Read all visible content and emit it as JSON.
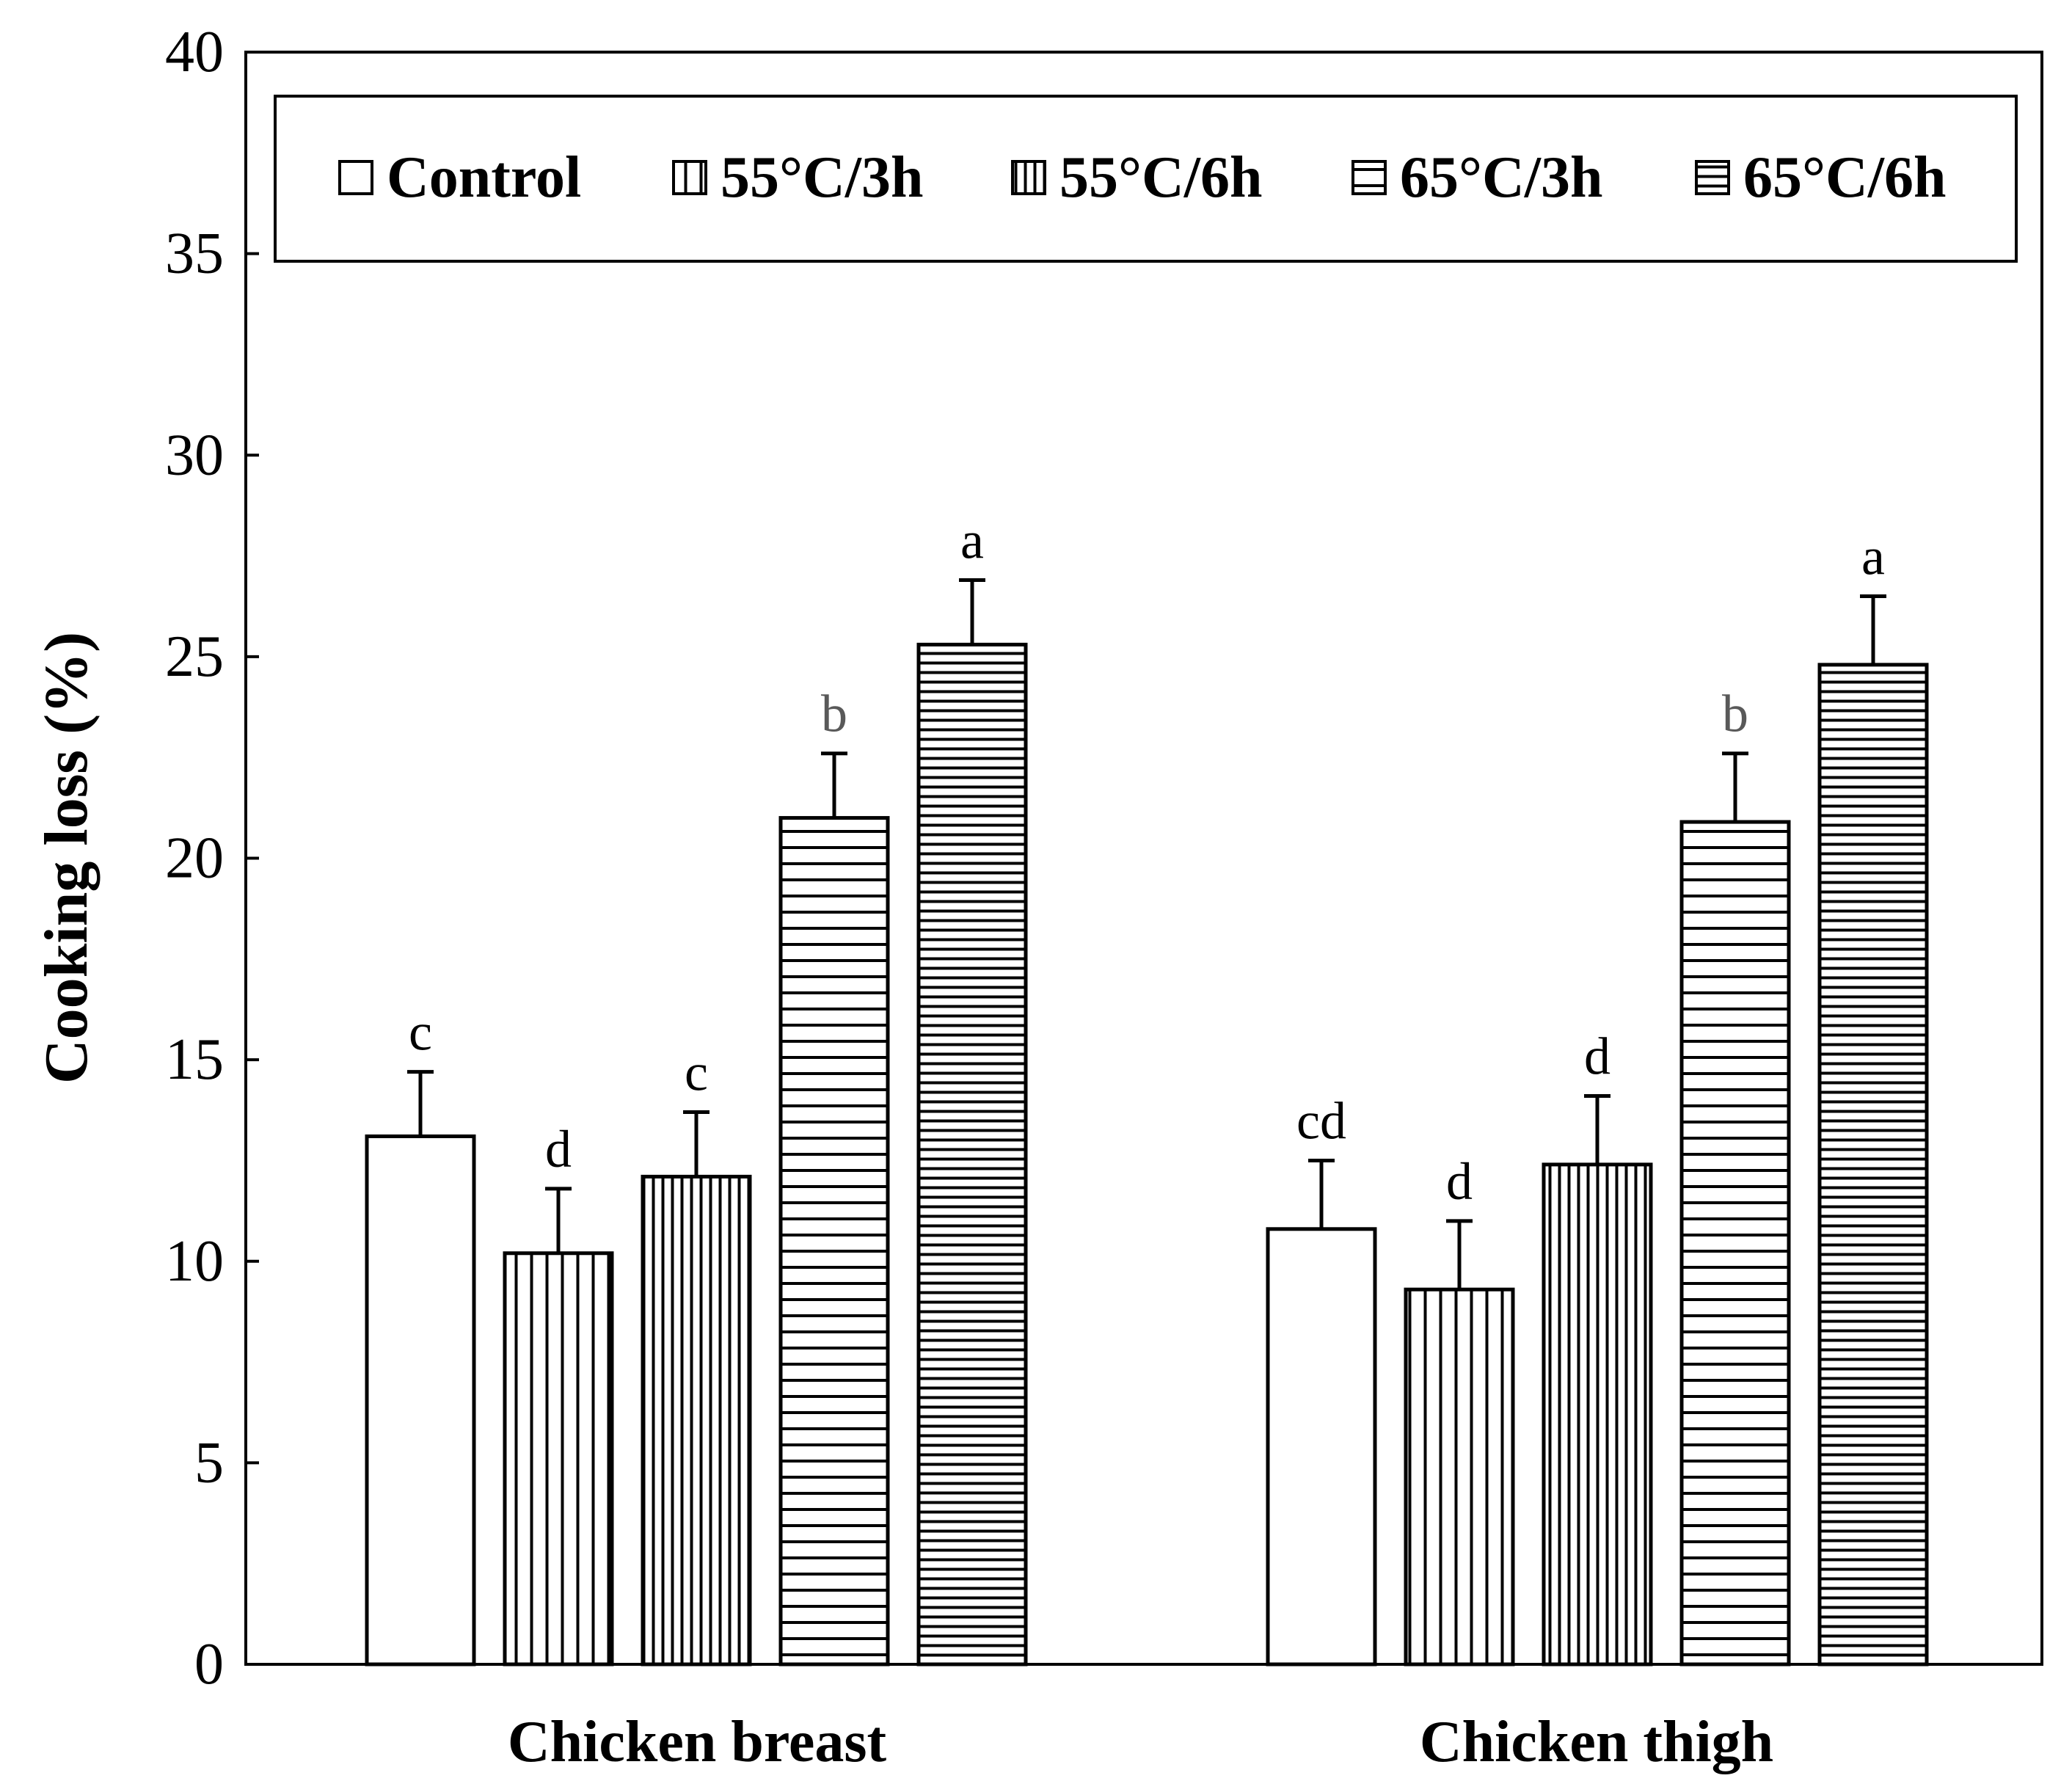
{
  "chart_data": {
    "type": "bar",
    "title": "",
    "xlabel": "",
    "ylabel": "Cooking loss (%)",
    "ylim": [
      0,
      40
    ],
    "yticks": [
      0,
      5,
      10,
      15,
      20,
      25,
      30,
      35,
      40
    ],
    "grid": false,
    "legend_position": "top",
    "categories": [
      "Chicken breast",
      "Chicken thigh"
    ],
    "series": [
      {
        "name": "Control",
        "pattern": "none",
        "values": [
          13.1,
          10.8
        ],
        "errors": [
          1.6,
          1.7
        ],
        "letters": [
          "c",
          "cd"
        ]
      },
      {
        "name": "55°C/3h",
        "pattern": "vertical",
        "values": [
          10.2,
          9.3
        ],
        "errors": [
          1.6,
          1.7
        ],
        "letters": [
          "d",
          "d"
        ]
      },
      {
        "name": "55°C/6h",
        "pattern": "vertical",
        "values": [
          12.1,
          12.4
        ],
        "errors": [
          1.6,
          1.7
        ],
        "letters": [
          "c",
          "d"
        ]
      },
      {
        "name": "65°C/3h",
        "pattern": "horizontal",
        "values": [
          21.0,
          20.9
        ],
        "errors": [
          1.6,
          1.7
        ],
        "letters": [
          "b",
          "b"
        ]
      },
      {
        "name": "65°C/6h",
        "pattern": "horizontal",
        "values": [
          25.3,
          24.8
        ],
        "errors": [
          1.6,
          1.7
        ],
        "letters": [
          "a",
          "a"
        ]
      }
    ]
  },
  "colors": {
    "axis": "#000000",
    "bar_fill": "#ffffff",
    "letter_default": "#000000",
    "letter_muted": "#595959"
  }
}
